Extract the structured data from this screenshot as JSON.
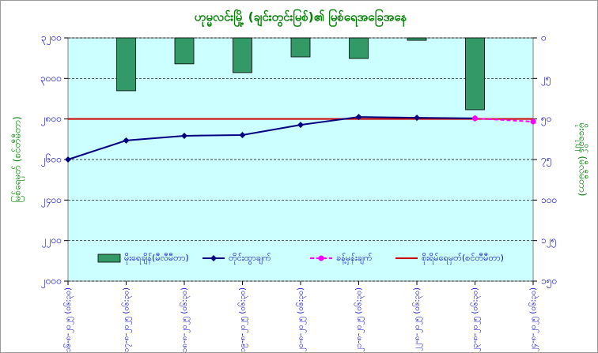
{
  "chart_data": {
    "type": "combo",
    "title": "ဟုမ္မလင်းမြို့ (ချင်းတွင်းမြစ်)၏ မြစ်ရေအခြေအနေ",
    "ylabel": "မြစ်ရေမှတ် (စင်တီမီတာ)",
    "y2label": "မိုးရေချိန် (မီလီမီတာ)",
    "categories": [
      "၁၆-၈-၂၀၂၅ (၀၆:၃၀)",
      "၁၇-၈-၂၀၂၅ (၀၆:၃၀)",
      "၁၈-၈-၂၀၂၅ (၀၆:၃၀)",
      "၁၉-၈-၂၀၂၅ (၀၆:၃၀)",
      "၂၀-၈-၂၀၂၅ (၀၆:၃၀)",
      "၂၁-၈-၂၀၂၅ (၀၆:၃၀)",
      "၂၂-၈-၂၀၂၅ (၀၆:၃၀)",
      "၂၃-၈-၂၀၂၅ (၀၆:၃၀)",
      "၂၄-၈-၂၀၂၅ (၀၆:၃၀)"
    ],
    "series": [
      {
        "name": "မိုးရေချိန်(မီလီမီတာ)",
        "kind": "bar",
        "axis": "y2",
        "color": "#339966",
        "values": [
          null,
          32.6,
          16,
          21.4,
          11.7,
          12.7,
          1.5,
          44.3,
          null
        ]
      },
      {
        "name": "တိုင်းထွာချက်",
        "kind": "line",
        "color": "#000080",
        "values": [
          2600,
          2694,
          2717,
          2721,
          2771,
          2810,
          2806,
          2803,
          null
        ]
      },
      {
        "name": "ခန့်မှန်းချက်",
        "kind": "dashed",
        "color": "#ff00ff",
        "values": [
          null,
          null,
          null,
          null,
          null,
          null,
          null,
          2803,
          2787
        ]
      }
    ],
    "danger_level": {
      "name": "စိုးရိမ်ရေမှတ်(စင်တီမီတာ)",
      "value": 2800,
      "color": "#cc0000"
    },
    "ylim": [
      2000,
      3200
    ],
    "yticks": [
      {
        "value": 2000,
        "label": "၂၀၀၀"
      },
      {
        "value": 2200,
        "label": "၂၂၀၀"
      },
      {
        "value": 2400,
        "label": "၂၄၀၀"
      },
      {
        "value": 2600,
        "label": "၂၆၀၀"
      },
      {
        "value": 2800,
        "label": "၂၈၀၀"
      },
      {
        "value": 3000,
        "label": "၃၀၀၀"
      },
      {
        "value": 3200,
        "label": "၃၂၀၀"
      }
    ],
    "y2lim": [
      150,
      0
    ],
    "y2ticks": [
      {
        "value": 0,
        "label": "၀"
      },
      {
        "value": 25,
        "label": "၂၅"
      },
      {
        "value": 50,
        "label": "၅၀"
      },
      {
        "value": 75,
        "label": "၇၅"
      },
      {
        "value": 100,
        "label": "၁၀၀"
      },
      {
        "value": 125,
        "label": "၁၂၅"
      },
      {
        "value": 150,
        "label": "၁၅၀"
      }
    ],
    "grid": true
  }
}
